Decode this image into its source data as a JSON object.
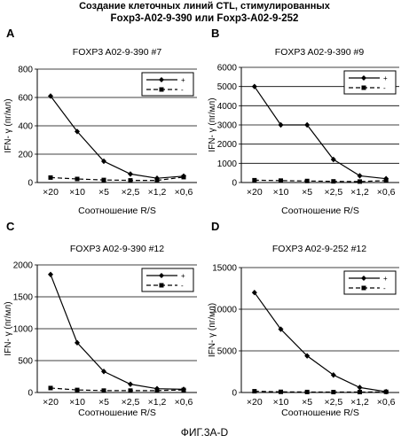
{
  "header": {
    "line1": "Создание клеточных линий CTL, стимулированных",
    "line2": "Foxp3-A02-9-390 или Foxp3-A02-9-252"
  },
  "figure_caption": "ФИГ.3А-D",
  "legend_labels": [
    "+",
    "-"
  ],
  "chart_data": [
    {
      "panel": "A",
      "type": "line",
      "title": "FOXP3 A02-9-390 #7",
      "xlabel": "Соотношение R/S",
      "ylabel": "IFN- γ (пг/мл)",
      "categories": [
        "×20",
        "×10",
        "×5",
        "×2,5",
        "×1,2",
        "×0,6"
      ],
      "ylim": [
        0,
        800
      ],
      "yticks": [
        0,
        200,
        400,
        600,
        800
      ],
      "grid": true,
      "legend": "top-right",
      "series": [
        {
          "name": "+",
          "values": [
            610,
            360,
            150,
            60,
            30,
            45
          ],
          "style": "solid-diamond"
        },
        {
          "name": "-",
          "values": [
            35,
            25,
            18,
            15,
            15,
            38
          ],
          "style": "dashed-square"
        }
      ]
    },
    {
      "panel": "B",
      "type": "line",
      "title": "FOXP3 A02-9-390 #9",
      "xlabel": "Соотношение R/S",
      "ylabel": "IFN- γ (пг/мл)",
      "categories": [
        "×20",
        "×10",
        "×5",
        "×2,5",
        "×1,2",
        "×0,6"
      ],
      "ylim": [
        0,
        6000
      ],
      "yticks": [
        0,
        1000,
        2000,
        3000,
        4000,
        5000,
        6000
      ],
      "grid": true,
      "legend": "top-right",
      "series": [
        {
          "name": "+",
          "values": [
            5000,
            3000,
            3000,
            1200,
            350,
            200
          ],
          "style": "solid-diamond"
        },
        {
          "name": "-",
          "values": [
            120,
            100,
            80,
            60,
            50,
            100
          ],
          "style": "dashed-square"
        }
      ]
    },
    {
      "panel": "C",
      "type": "line",
      "title": "FOXP3 A02-9-390 #12",
      "xlabel": "Соотношение R/S",
      "ylabel": "IFN- γ (пг/мл)",
      "categories": [
        "×20",
        "×10",
        "×5",
        "×2,5",
        "×1,2",
        "×0,6"
      ],
      "ylim": [
        0,
        2000
      ],
      "yticks": [
        0,
        500,
        1000,
        1500,
        2000
      ],
      "grid": true,
      "legend": "top-right",
      "series": [
        {
          "name": "+",
          "values": [
            1850,
            780,
            330,
            130,
            60,
            50
          ],
          "style": "solid-diamond"
        },
        {
          "name": "-",
          "values": [
            70,
            40,
            30,
            30,
            30,
            40
          ],
          "style": "dashed-square"
        }
      ]
    },
    {
      "panel": "D",
      "type": "line",
      "title": "FOXP3 A02-9-252 #12",
      "xlabel": "Соотношение R/S",
      "ylabel": "IFN- γ (пг/мл)",
      "categories": [
        "×20",
        "×10",
        "×5",
        "×2,5",
        "×1,2",
        "×0,6"
      ],
      "ylim": [
        0,
        15000
      ],
      "yticks": [
        0,
        5000,
        10000,
        15000
      ],
      "grid": true,
      "legend": "top-right",
      "series": [
        {
          "name": "+",
          "values": [
            12000,
            7600,
            4400,
            2100,
            600,
            100
          ],
          "style": "solid-diamond"
        },
        {
          "name": "-",
          "values": [
            150,
            80,
            60,
            50,
            50,
            80
          ],
          "style": "dashed-square"
        }
      ]
    }
  ]
}
